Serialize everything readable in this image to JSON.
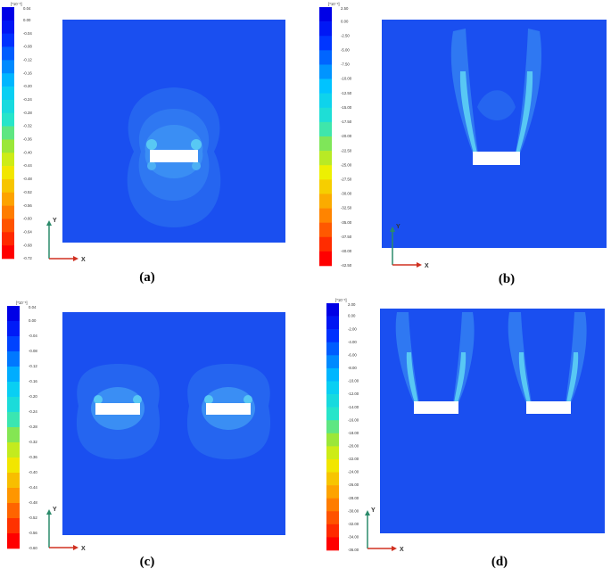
{
  "panels": [
    {
      "caption": "(a)",
      "colorbar": {
        "unit": "[*10⁻³]",
        "labels": [
          "0.04",
          "0.00",
          "-0.04",
          "-0.08",
          "-0.12",
          "-0.16",
          "-0.20",
          "-0.24",
          "-0.28",
          "-0.32",
          "-0.36",
          "-0.40",
          "-0.44",
          "-0.48",
          "-0.52",
          "-0.56",
          "-0.60",
          "-0.64",
          "-0.68",
          "-0.72"
        ]
      },
      "axes": {
        "y": "Y",
        "x": "X"
      }
    },
    {
      "caption": "(b)",
      "colorbar": {
        "unit": "[*10⁻³]",
        "labels": [
          "2.50",
          "0.00",
          "-2.50",
          "-5.00",
          "-7.50",
          "-10.00",
          "-12.50",
          "-15.00",
          "-17.50",
          "-20.00",
          "-22.50",
          "-25.00",
          "-27.50",
          "-30.00",
          "-32.50",
          "-35.00",
          "-37.50",
          "-40.00",
          "-42.50"
        ]
      },
      "axes": {
        "y": "Y",
        "x": "X"
      }
    },
    {
      "caption": "(c)",
      "colorbar": {
        "unit": "[*10⁻³]",
        "labels": [
          "0.04",
          "0.00",
          "-0.04",
          "-0.08",
          "-0.12",
          "-0.16",
          "-0.20",
          "-0.24",
          "-0.28",
          "-0.32",
          "-0.36",
          "-0.40",
          "-0.44",
          "-0.48",
          "-0.52",
          "-0.56",
          "-0.60"
        ]
      },
      "axes": {
        "y": "Y",
        "x": "X"
      }
    },
    {
      "caption": "(d)",
      "colorbar": {
        "unit": "[*10⁻³]",
        "labels": [
          "2.00",
          "0.00",
          "-2.00",
          "-4.00",
          "-6.00",
          "-8.00",
          "-10.00",
          "-12.00",
          "-14.00",
          "-16.00",
          "-18.00",
          "-20.00",
          "-22.00",
          "-24.00",
          "-26.00",
          "-28.00",
          "-30.00",
          "-32.00",
          "-34.00",
          "-36.00"
        ]
      },
      "axes": {
        "y": "Y",
        "x": "X"
      }
    }
  ]
}
